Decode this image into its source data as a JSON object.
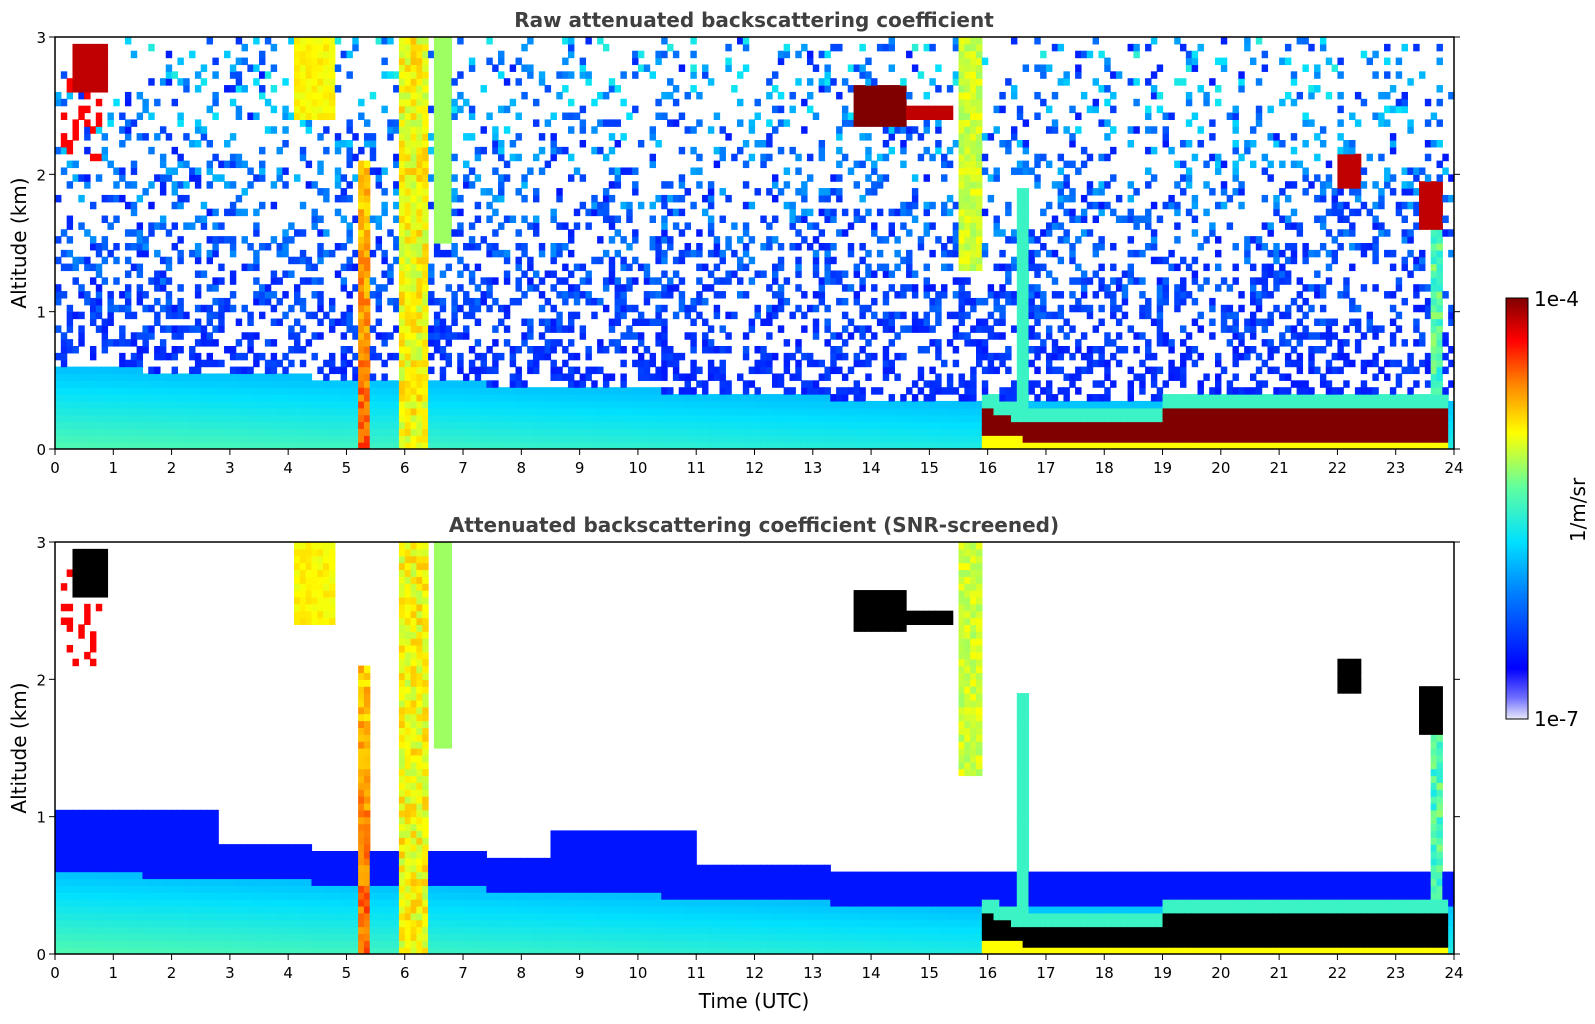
{
  "chart_data": [
    {
      "type": "heatmap",
      "title": "Raw attenuated backscattering coefficient",
      "xlabel": "",
      "ylabel": "Altitude (km)",
      "xlim": [
        0,
        24
      ],
      "ylim": [
        0,
        3
      ],
      "xticks": [
        "0",
        "1",
        "2",
        "3",
        "4",
        "5",
        "6",
        "7",
        "8",
        "9",
        "10",
        "11",
        "12",
        "13",
        "14",
        "15",
        "16",
        "17",
        "18",
        "19",
        "20",
        "21",
        "22",
        "23",
        "24"
      ],
      "yticks": [
        "0",
        "1",
        "2",
        "3"
      ],
      "colorscale": "jet",
      "features": [
        {
          "name": "boundary layer aerosol",
          "t": [
            0,
            16
          ],
          "z_top": [
            0.55,
            0.35
          ],
          "level": 0.35
        },
        {
          "name": "fog / low cloud layer",
          "t": [
            15.9,
            23.9
          ],
          "z": [
            0.05,
            0.35
          ],
          "level": 1.0
        },
        {
          "name": "precipitation shaft",
          "t": [
            5.2,
            5.4
          ],
          "z": [
            0,
            2.0
          ],
          "level": 0.75
        },
        {
          "name": "precipitation shaft",
          "t": [
            5.9,
            6.4
          ],
          "z": [
            0,
            3.0
          ],
          "level": 0.7
        },
        {
          "name": "cloud",
          "t": [
            13.7,
            15.5
          ],
          "z": [
            2.35,
            2.65
          ],
          "level": 1.0
        },
        {
          "name": "cloud",
          "t": [
            22.0,
            22.4
          ],
          "z": [
            1.9,
            2.15
          ],
          "level": 0.95
        },
        {
          "name": "cloud",
          "t": [
            23.4,
            23.9
          ],
          "z": [
            1.6,
            1.95
          ],
          "level": 0.95
        },
        {
          "name": "cloud",
          "t": [
            0.0,
            0.9
          ],
          "z": [
            2.1,
            2.95
          ],
          "level": 0.95
        }
      ]
    },
    {
      "type": "heatmap",
      "title": "Attenuated backscattering coefficient (SNR-screened)",
      "xlabel": "Time (UTC)",
      "ylabel": "Altitude (km)",
      "xlim": [
        0,
        24
      ],
      "ylim": [
        0,
        3
      ],
      "xticks": [
        "0",
        "1",
        "2",
        "3",
        "4",
        "5",
        "6",
        "7",
        "8",
        "9",
        "10",
        "11",
        "12",
        "13",
        "14",
        "15",
        "16",
        "17",
        "18",
        "19",
        "20",
        "21",
        "22",
        "23",
        "24"
      ],
      "yticks": [
        "0",
        "1",
        "2",
        "3"
      ],
      "colorscale": "jet"
    }
  ],
  "colorbar": {
    "label": "1/m/sr",
    "max_label": "1e-4",
    "min_label": "1e-7",
    "scale": "log"
  }
}
